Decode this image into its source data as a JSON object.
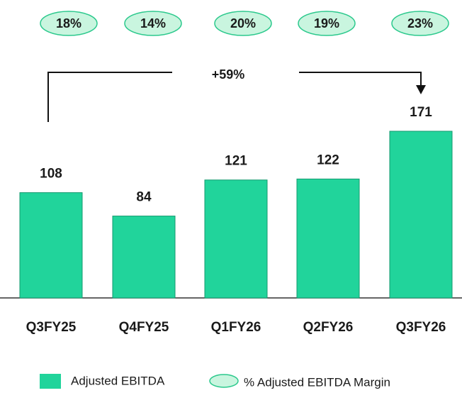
{
  "chart_data": {
    "type": "bar",
    "categories": [
      "Q3FY25",
      "Q4FY25",
      "Q1FY26",
      "Q2FY26",
      "Q3FY26"
    ],
    "series": [
      {
        "name": "Adjusted EBITDA",
        "color": "#21d49b",
        "values": [
          108,
          84,
          121,
          122,
          171
        ]
      },
      {
        "name": "% Adjusted EBITDA Margin",
        "color": "#c9f5df",
        "values": [
          18,
          14,
          20,
          19,
          23
        ],
        "value_labels": [
          "18%",
          "14%",
          "20%",
          "19%",
          "23%"
        ]
      }
    ],
    "annotation": "+59%"
  }
}
